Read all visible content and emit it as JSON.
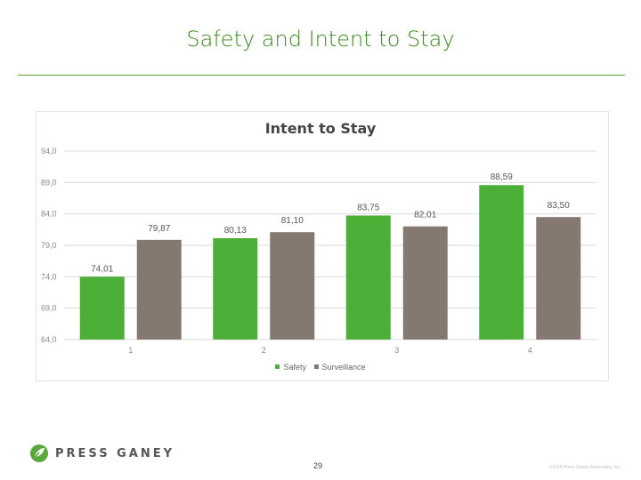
{
  "page": {
    "title": "Safety and Intent to Stay",
    "logo_text": "PRESS GANEY",
    "page_number": "29",
    "footer_note": "©2016 Press Ganey Associates, Inc."
  },
  "colors": {
    "title": "#3a8a1e",
    "rule": "#57a23b",
    "safety": "#4caf37",
    "surveillance": "#857870"
  },
  "chart_data": {
    "type": "bar",
    "title": "Intent to Stay",
    "categories": [
      "1",
      "2",
      "3",
      "4"
    ],
    "series": [
      {
        "name": "Safety",
        "values": [
          74.01,
          80.13,
          83.75,
          88.59
        ],
        "labels": [
          "74,01",
          "80,13",
          "83,75",
          "88,59"
        ]
      },
      {
        "name": "Surveillance",
        "values": [
          79.87,
          81.1,
          82.01,
          83.5
        ],
        "labels": [
          "79,87",
          "81,10",
          "82,01",
          "83,50"
        ]
      }
    ],
    "y_ticks": [
      64,
      69,
      74,
      79,
      84,
      89,
      94
    ],
    "y_tick_labels": [
      "64,0",
      "69,0",
      "74,0",
      "79,0",
      "84,0",
      "89,0",
      "94,0"
    ],
    "ylim": [
      64,
      94
    ],
    "grid": true,
    "legend_position": "bottom",
    "xlabel": "",
    "ylabel": ""
  }
}
